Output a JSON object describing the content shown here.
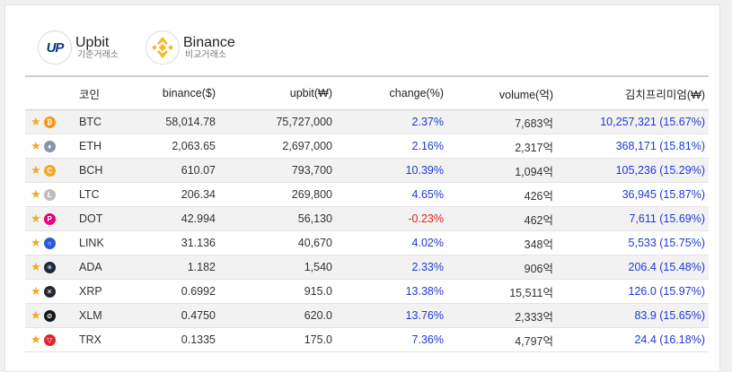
{
  "exchanges": {
    "base": {
      "name": "Upbit",
      "sub": "기준거래소",
      "logo": "UP"
    },
    "compare": {
      "name": "Binance",
      "sub": "비교거래소"
    }
  },
  "table": {
    "headers": {
      "coin": "코인",
      "binance": "binance($)",
      "upbit": "upbit(₩)",
      "change": "change(%)",
      "volume": "volume(억)",
      "kimchi": "김치프리미엄(₩)"
    },
    "rows": [
      {
        "symbol": "BTC",
        "icon": "bitcoin-icon",
        "color": "#f7931a",
        "glyph": "₿",
        "binance": "58,014.78",
        "upbit": "75,727,000",
        "change": "2.37%",
        "dir": "pos",
        "volume": "7,683억",
        "kimchi": "10,257,321 (15.67%)"
      },
      {
        "symbol": "ETH",
        "icon": "ethereum-icon",
        "color": "#8a92b2",
        "glyph": "♦",
        "binance": "2,063.65",
        "upbit": "2,697,000",
        "change": "2.16%",
        "dir": "pos",
        "volume": "2,317억",
        "kimchi": "368,171 (15.81%)"
      },
      {
        "symbol": "BCH",
        "icon": "bitcoin-cash-icon",
        "color": "#f5a623",
        "glyph": "C",
        "binance": "610.07",
        "upbit": "793,700",
        "change": "10.39%",
        "dir": "pos",
        "volume": "1,094억",
        "kimchi": "105,236 (15.29%)"
      },
      {
        "symbol": "LTC",
        "icon": "litecoin-icon",
        "color": "#bcbcbc",
        "glyph": "Ł",
        "binance": "206.34",
        "upbit": "269,800",
        "change": "4.65%",
        "dir": "pos",
        "volume": "426억",
        "kimchi": "36,945 (15.87%)"
      },
      {
        "symbol": "DOT",
        "icon": "polkadot-icon",
        "color": "#e6007a",
        "glyph": "P",
        "binance": "42.994",
        "upbit": "56,130",
        "change": "-0.23%",
        "dir": "neg",
        "volume": "462억",
        "kimchi": "7,611 (15.69%)"
      },
      {
        "symbol": "LINK",
        "icon": "chainlink-icon",
        "color": "#2a5ada",
        "glyph": "○",
        "binance": "31.136",
        "upbit": "40,670",
        "change": "4.02%",
        "dir": "pos",
        "volume": "348억",
        "kimchi": "5,533 (15.75%)"
      },
      {
        "symbol": "ADA",
        "icon": "cardano-icon",
        "color": "#1a2a3a",
        "glyph": "✳",
        "binance": "1.182",
        "upbit": "1,540",
        "change": "2.33%",
        "dir": "pos",
        "volume": "906억",
        "kimchi": "206.4 (15.48%)"
      },
      {
        "symbol": "XRP",
        "icon": "ripple-icon",
        "color": "#23292f",
        "glyph": "✕",
        "binance": "0.6992",
        "upbit": "915.0",
        "change": "13.38%",
        "dir": "pos",
        "volume": "15,511억",
        "kimchi": "126.0 (15.97%)"
      },
      {
        "symbol": "XLM",
        "icon": "stellar-icon",
        "color": "#14161a",
        "glyph": "⊘",
        "binance": "0.4750",
        "upbit": "620.0",
        "change": "13.76%",
        "dir": "pos",
        "volume": "2,333억",
        "kimchi": "83.9 (15.65%)"
      },
      {
        "symbol": "TRX",
        "icon": "tron-icon",
        "color": "#e3232b",
        "glyph": "▽",
        "binance": "0.1335",
        "upbit": "175.0",
        "change": "7.36%",
        "dir": "pos",
        "volume": "4,797억",
        "kimchi": "24.4 (16.18%)"
      }
    ]
  }
}
